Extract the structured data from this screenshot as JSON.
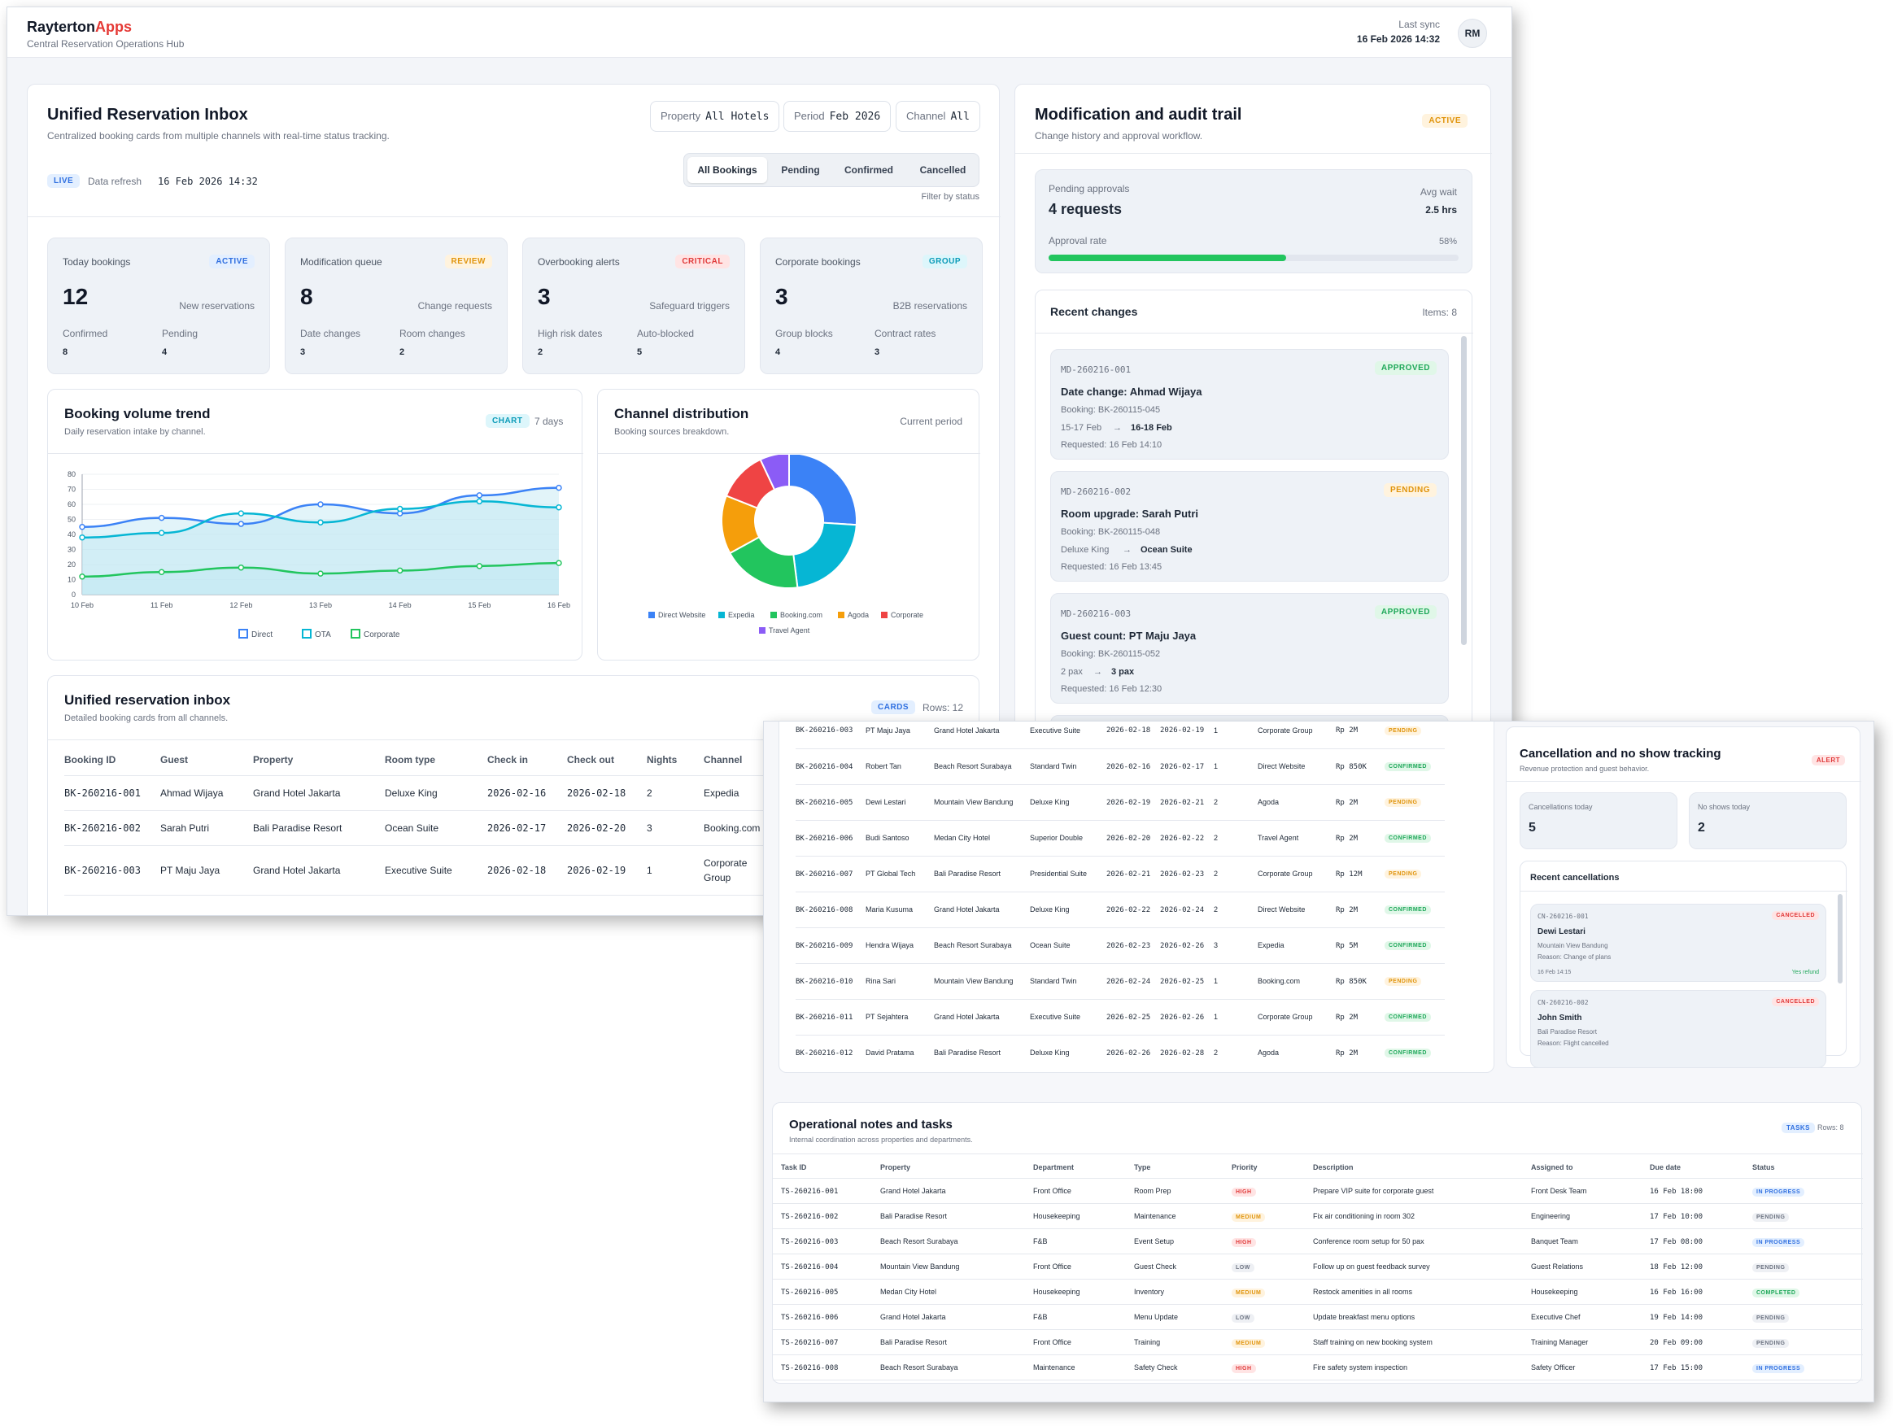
{
  "app": {
    "brand_main": "Rayterton",
    "brand_accent": "Apps",
    "subtitle": "Central Reservation Operations Hub",
    "sync_label": "Last sync",
    "sync_value": "16 Feb 2026 14:32",
    "avatar": "RM"
  },
  "inbox": {
    "title": "Unified Reservation Inbox",
    "desc": "Centralized booking cards from multiple channels with real-time status tracking.",
    "filters": [
      {
        "label": "Property",
        "value": "All Hotels"
      },
      {
        "label": "Period",
        "value": "Feb 2026"
      },
      {
        "label": "Channel",
        "value": "All"
      }
    ],
    "live": "LIVE",
    "refresh_label": "Data refresh",
    "refresh_value": "16 Feb 2026 14:32",
    "tabs": [
      "All Bookings",
      "Pending",
      "Confirmed",
      "Cancelled"
    ],
    "filter_hint": "Filter by status"
  },
  "kpis": [
    {
      "title": "Today bookings",
      "badge": "ACTIVE",
      "value": "12",
      "note": "New reservations",
      "l1": "Confirmed",
      "v1": "8",
      "l2": "Pending",
      "v2": "4"
    },
    {
      "title": "Modification queue",
      "badge": "REVIEW",
      "value": "8",
      "note": "Change requests",
      "l1": "Date changes",
      "v1": "3",
      "l2": "Room changes",
      "v2": "2"
    },
    {
      "title": "Overbooking alerts",
      "badge": "CRITICAL",
      "value": "3",
      "note": "Safeguard triggers",
      "l1": "High risk dates",
      "v1": "2",
      "l2": "Auto-blocked",
      "v2": "5"
    },
    {
      "title": "Corporate bookings",
      "badge": "GROUP",
      "value": "3",
      "note": "B2B reservations",
      "l1": "Group blocks",
      "v1": "4",
      "l2": "Contract rates",
      "v2": "3"
    }
  ],
  "trend": {
    "title": "Booking volume trend",
    "desc": "Daily reservation intake by channel.",
    "badge": "CHART",
    "range": "7 days"
  },
  "channel": {
    "title": "Channel distribution",
    "desc": "Booking sources breakdown.",
    "period": "Current period"
  },
  "chart_data": [
    {
      "type": "line",
      "title": "Booking volume trend",
      "categories": [
        "10 Feb",
        "11 Feb",
        "12 Feb",
        "13 Feb",
        "14 Feb",
        "15 Feb",
        "16 Feb"
      ],
      "ylim": [
        0,
        80
      ],
      "yticks": [
        0,
        10,
        20,
        30,
        40,
        50,
        60,
        70,
        80
      ],
      "series": [
        {
          "name": "Direct",
          "color": "#3b82f6",
          "values": [
            45,
            51,
            47,
            60,
            54,
            66,
            71
          ]
        },
        {
          "name": "OTA",
          "color": "#06b6d4",
          "values": [
            38,
            41,
            54,
            48,
            57,
            62,
            58
          ]
        },
        {
          "name": "Corporate",
          "color": "#22c55e",
          "values": [
            12,
            15,
            18,
            14,
            16,
            19,
            21
          ]
        }
      ]
    },
    {
      "type": "pie",
      "title": "Channel distribution",
      "labels": [
        "Direct Website",
        "Expedia",
        "Booking.com",
        "Agoda",
        "Corporate",
        "Travel Agent"
      ],
      "values": [
        26,
        22,
        19,
        14,
        12,
        7
      ],
      "colors": [
        "#3b82f6",
        "#06b6d4",
        "#22c55e",
        "#f59e0b",
        "#ef4444",
        "#8b5cf6"
      ]
    }
  ],
  "table": {
    "title": "Unified reservation inbox",
    "desc": "Detailed booking cards from all channels.",
    "badge": "CARDS",
    "rows_label": "Rows: 12",
    "headers": [
      "Booking ID",
      "Guest",
      "Property",
      "Room type",
      "Check in",
      "Check out",
      "Nights",
      "Channel"
    ],
    "rows": [
      {
        "id": "BK-260216-001",
        "guest": "Ahmad Wijaya",
        "property": "Grand Hotel Jakarta",
        "room": "Deluxe King",
        "in": "2026-02-16",
        "out": "2026-02-18",
        "nights": "2",
        "channel": "Expedia"
      },
      {
        "id": "BK-260216-002",
        "guest": "Sarah Putri",
        "property": "Bali Paradise Resort",
        "room": "Ocean Suite",
        "in": "2026-02-17",
        "out": "2026-02-20",
        "nights": "3",
        "channel": "Booking.com"
      },
      {
        "id": "BK-260216-003",
        "guest": "PT Maju Jaya",
        "property": "Grand Hotel Jakarta",
        "room": "Executive Suite",
        "in": "2026-02-18",
        "out": "2026-02-19",
        "nights": "1",
        "channel": "Corporate Group",
        "amount": "Rp 2M",
        "status": "PENDING"
      },
      {
        "id": "BK-260216-004",
        "guest": "Robert Tan",
        "property": "Beach Resort Surabaya",
        "room": "Standard Twin",
        "in": "2026-02-16",
        "out": "2026-02-17",
        "nights": "1",
        "channel": "Direct Website",
        "amount": "Rp 850K",
        "status": "CONFIRMED"
      },
      {
        "id": "BK-260216-005",
        "guest": "Dewi Lestari",
        "property": "Mountain View Bandung",
        "room": "Deluxe King",
        "in": "2026-02-19",
        "out": "2026-02-21",
        "nights": "2",
        "channel": "Agoda",
        "amount": "Rp 2M",
        "status": "PENDING"
      },
      {
        "id": "BK-260216-006",
        "guest": "Budi Santoso",
        "property": "Medan City Hotel",
        "room": "Superior Double",
        "in": "2026-02-20",
        "out": "2026-02-22",
        "nights": "2",
        "channel": "Travel Agent",
        "amount": "Rp 2M",
        "status": "CONFIRMED"
      },
      {
        "id": "BK-260216-007",
        "guest": "PT Global Tech",
        "property": "Bali Paradise Resort",
        "room": "Presidential Suite",
        "in": "2026-02-21",
        "out": "2026-02-23",
        "nights": "2",
        "channel": "Corporate Group",
        "amount": "Rp 12M",
        "status": "PENDING"
      },
      {
        "id": "BK-260216-008",
        "guest": "Maria Kusuma",
        "property": "Grand Hotel Jakarta",
        "room": "Deluxe King",
        "in": "2026-02-22",
        "out": "2026-02-24",
        "nights": "2",
        "channel": "Direct Website",
        "amount": "Rp 2M",
        "status": "CONFIRMED"
      },
      {
        "id": "BK-260216-009",
        "guest": "Hendra Wijaya",
        "property": "Beach Resort Surabaya",
        "room": "Ocean Suite",
        "in": "2026-02-23",
        "out": "2026-02-26",
        "nights": "3",
        "channel": "Expedia",
        "amount": "Rp 5M",
        "status": "CONFIRMED"
      },
      {
        "id": "BK-260216-010",
        "guest": "Rina Sari",
        "property": "Mountain View Bandung",
        "room": "Standard Twin",
        "in": "2026-02-24",
        "out": "2026-02-25",
        "nights": "1",
        "channel": "Booking.com",
        "amount": "Rp 850K",
        "status": "PENDING"
      },
      {
        "id": "BK-260216-011",
        "guest": "PT Sejahtera",
        "property": "Grand Hotel Jakarta",
        "room": "Executive Suite",
        "in": "2026-02-25",
        "out": "2026-02-26",
        "nights": "1",
        "channel": "Corporate Group",
        "amount": "Rp 2M",
        "status": "CONFIRMED"
      },
      {
        "id": "BK-260216-012",
        "guest": "David Pratama",
        "property": "Bali Paradise Resort",
        "room": "Deluxe King",
        "in": "2026-02-26",
        "out": "2026-02-28",
        "nights": "2",
        "channel": "Agoda",
        "amount": "Rp 2M",
        "status": "CONFIRMED"
      }
    ]
  },
  "audit": {
    "title": "Modification and audit trail",
    "desc": "Change history and approval workflow.",
    "badge": "ACTIVE",
    "pending_label": "Pending approvals",
    "pending_value": "4 requests",
    "wait_label": "Avg wait",
    "wait_value": "2.5 hrs",
    "rate_label": "Approval rate",
    "rate_value": "58%",
    "rate": 58,
    "recent_title": "Recent changes",
    "items_label": "Items: 8",
    "changes": [
      {
        "id": "MD-260216-001",
        "status": "APPROVED",
        "title": "Date change: Ahmad Wijaya",
        "booking": "Booking: BK-260115-045",
        "from": "15-17 Feb",
        "to": "16-18 Feb",
        "requested": "Requested: 16 Feb 14:10"
      },
      {
        "id": "MD-260216-002",
        "status": "PENDING",
        "title": "Room upgrade: Sarah Putri",
        "booking": "Booking: BK-260115-048",
        "from": "Deluxe King",
        "to": "Ocean Suite",
        "requested": "Requested: 16 Feb 13:45"
      },
      {
        "id": "MD-260216-003",
        "status": "APPROVED",
        "title": "Guest count: PT Maju Jaya",
        "booking": "Booking: BK-260115-052",
        "from": "2 pax",
        "to": "3 pax",
        "requested": "Requested: 16 Feb 12:30"
      }
    ]
  },
  "cancel": {
    "title": "Cancellation and no show tracking",
    "desc": "Revenue protection and guest behavior.",
    "badge": "ALERT",
    "c_label": "Cancellations today",
    "c_value": "5",
    "n_label": "No shows today",
    "n_value": "2",
    "recent_title": "Recent cancellations",
    "items": [
      {
        "id": "CN-260216-001",
        "status": "CANCELLED",
        "name": "Dewi Lestari",
        "property": "Mountain View Bandung",
        "reason": "Reason: Change of plans",
        "time": "16 Feb 14:15",
        "refund": "Yes refund"
      },
      {
        "id": "CN-260216-002",
        "status": "CANCELLED",
        "name": "John Smith",
        "property": "Bali Paradise Resort",
        "reason": "Reason: Flight cancelled"
      }
    ]
  },
  "tasks": {
    "title": "Operational notes and tasks",
    "desc": "Internal coordination across properties and departments.",
    "badge": "TASKS",
    "rows_label": "Rows: 8",
    "headers": [
      "Task ID",
      "Property",
      "Department",
      "Type",
      "Priority",
      "Description",
      "Assigned to",
      "Due date",
      "Status"
    ],
    "rows": [
      {
        "id": "TS-260216-001",
        "property": "Grand Hotel Jakarta",
        "dept": "Front Office",
        "type": "Room Prep",
        "priority": "HIGH",
        "desc": "Prepare VIP suite for corporate guest",
        "assigned": "Front Desk Team",
        "due": "16 Feb 18:00",
        "status": "IN PROGRESS"
      },
      {
        "id": "TS-260216-002",
        "property": "Bali Paradise Resort",
        "dept": "Housekeeping",
        "type": "Maintenance",
        "priority": "MEDIUM",
        "desc": "Fix air conditioning in room 302",
        "assigned": "Engineering",
        "due": "17 Feb 10:00",
        "status": "PENDING"
      },
      {
        "id": "TS-260216-003",
        "property": "Beach Resort Surabaya",
        "dept": "F&B",
        "type": "Event Setup",
        "priority": "HIGH",
        "desc": "Conference room setup for 50 pax",
        "assigned": "Banquet Team",
        "due": "17 Feb 08:00",
        "status": "IN PROGRESS"
      },
      {
        "id": "TS-260216-004",
        "property": "Mountain View Bandung",
        "dept": "Front Office",
        "type": "Guest Check",
        "priority": "LOW",
        "desc": "Follow up on guest feedback survey",
        "assigned": "Guest Relations",
        "due": "18 Feb 12:00",
        "status": "PENDING"
      },
      {
        "id": "TS-260216-005",
        "property": "Medan City Hotel",
        "dept": "Housekeeping",
        "type": "Inventory",
        "priority": "MEDIUM",
        "desc": "Restock amenities in all rooms",
        "assigned": "Housekeeping",
        "due": "16 Feb 16:00",
        "status": "COMPLETED"
      },
      {
        "id": "TS-260216-006",
        "property": "Grand Hotel Jakarta",
        "dept": "F&B",
        "type": "Menu Update",
        "priority": "LOW",
        "desc": "Update breakfast menu options",
        "assigned": "Executive Chef",
        "due": "19 Feb 14:00",
        "status": "PENDING"
      },
      {
        "id": "TS-260216-007",
        "property": "Bali Paradise Resort",
        "dept": "Front Office",
        "type": "Training",
        "priority": "MEDIUM",
        "desc": "Staff training on new booking system",
        "assigned": "Training Manager",
        "due": "20 Feb 09:00",
        "status": "PENDING"
      },
      {
        "id": "TS-260216-008",
        "property": "Beach Resort Surabaya",
        "dept": "Maintenance",
        "type": "Safety Check",
        "priority": "HIGH",
        "desc": "Fire safety system inspection",
        "assigned": "Safety Officer",
        "due": "17 Feb 15:00",
        "status": "IN PROGRESS"
      }
    ]
  }
}
